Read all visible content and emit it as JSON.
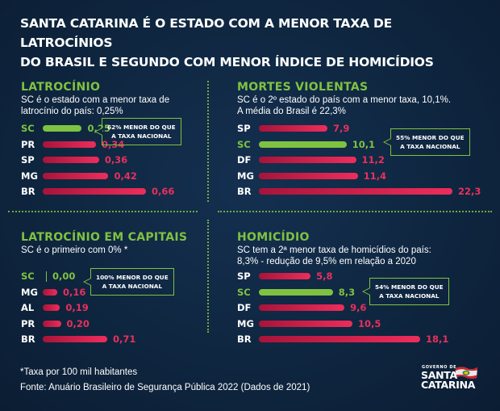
{
  "title": {
    "line1": "SANTA CATARINA  É O ESTADO COM A MENOR TAXA DE LATROCÍNIOS",
    "line2": "DO BRASIL E SEGUNDO COM MENOR ÍNDICE DE HOMICÍDIOS"
  },
  "colors": {
    "highlight": "#7fc241",
    "bar": "#e8305d",
    "background": "#0f2640"
  },
  "chart_data": [
    {
      "type": "bar",
      "orientation": "horizontal",
      "title": "LATROCÍNIO",
      "subtitle_lines": [
        "SC é o estado com a menor taxa de",
        "latrocínio do país: 0,25%"
      ],
      "categories": [
        "SC",
        "PR",
        "SP",
        "MG",
        "BR"
      ],
      "values": [
        0.25,
        0.34,
        0.36,
        0.42,
        0.66
      ],
      "value_labels": [
        "0,25",
        "0,34",
        "0,36",
        "0,42",
        "0,66"
      ],
      "highlight": "SC",
      "callout_lines": [
        "62% MENOR DO QUE",
        "A TAXA NACIONAL"
      ]
    },
    {
      "type": "bar",
      "orientation": "horizontal",
      "title": "MORTES VIOLENTAS",
      "subtitle_lines": [
        "SC é o 2º estado do país com a menor taxa, 10,1%.",
        "A média do Brasil é 22,3%"
      ],
      "categories": [
        "SP",
        "SC",
        "DF",
        "MG",
        "BR"
      ],
      "values": [
        7.9,
        10.1,
        11.2,
        11.4,
        22.3
      ],
      "value_labels": [
        "7,9",
        "10,1",
        "11,2",
        "11,4",
        "22,3"
      ],
      "highlight": "SC",
      "callout_lines": [
        "55% MENOR DO QUE",
        "A TAXA NACIONAL"
      ]
    },
    {
      "type": "bar",
      "orientation": "horizontal",
      "title": "LATROCÍNIO EM CAPITAIS",
      "subtitle_lines": [
        "SC é o primeiro com 0% *"
      ],
      "categories": [
        "SC",
        "MG",
        "AL",
        "PR",
        "BR"
      ],
      "values": [
        0.0,
        0.16,
        0.19,
        0.2,
        0.71
      ],
      "value_labels": [
        "0,00",
        "0,16",
        "0,19",
        "0,20",
        "0,71"
      ],
      "highlight": "SC",
      "callout_lines": [
        "100% MENOR DO QUE",
        "A TAXA NACIONAL"
      ]
    },
    {
      "type": "bar",
      "orientation": "horizontal",
      "title": "HOMICÍDIO",
      "subtitle_lines": [
        "SC tem a 2ª menor taxa de homicídios do país:",
        "8,3% - redução de 9,5% em relação a 2020"
      ],
      "categories": [
        "SP",
        "SC",
        "DF",
        "MG",
        "BR"
      ],
      "values": [
        5.8,
        8.3,
        9.6,
        10.5,
        18.1
      ],
      "value_labels": [
        "5,8",
        "8,3",
        "9,6",
        "10,5",
        "18,1"
      ],
      "highlight": "SC",
      "callout_lines": [
        "54% MENOR DO QUE",
        "A TAXA NACIONAL"
      ]
    }
  ],
  "footer": {
    "note": "*Taxa por 100 mil habitantes",
    "source": "Fonte:  Anuário Brasileiro de Segurança Pública 2022 (Dados de 2021)"
  },
  "logo": {
    "top": "GOVERNO DE",
    "line1": "SANTA",
    "line2": "CATARINA"
  }
}
